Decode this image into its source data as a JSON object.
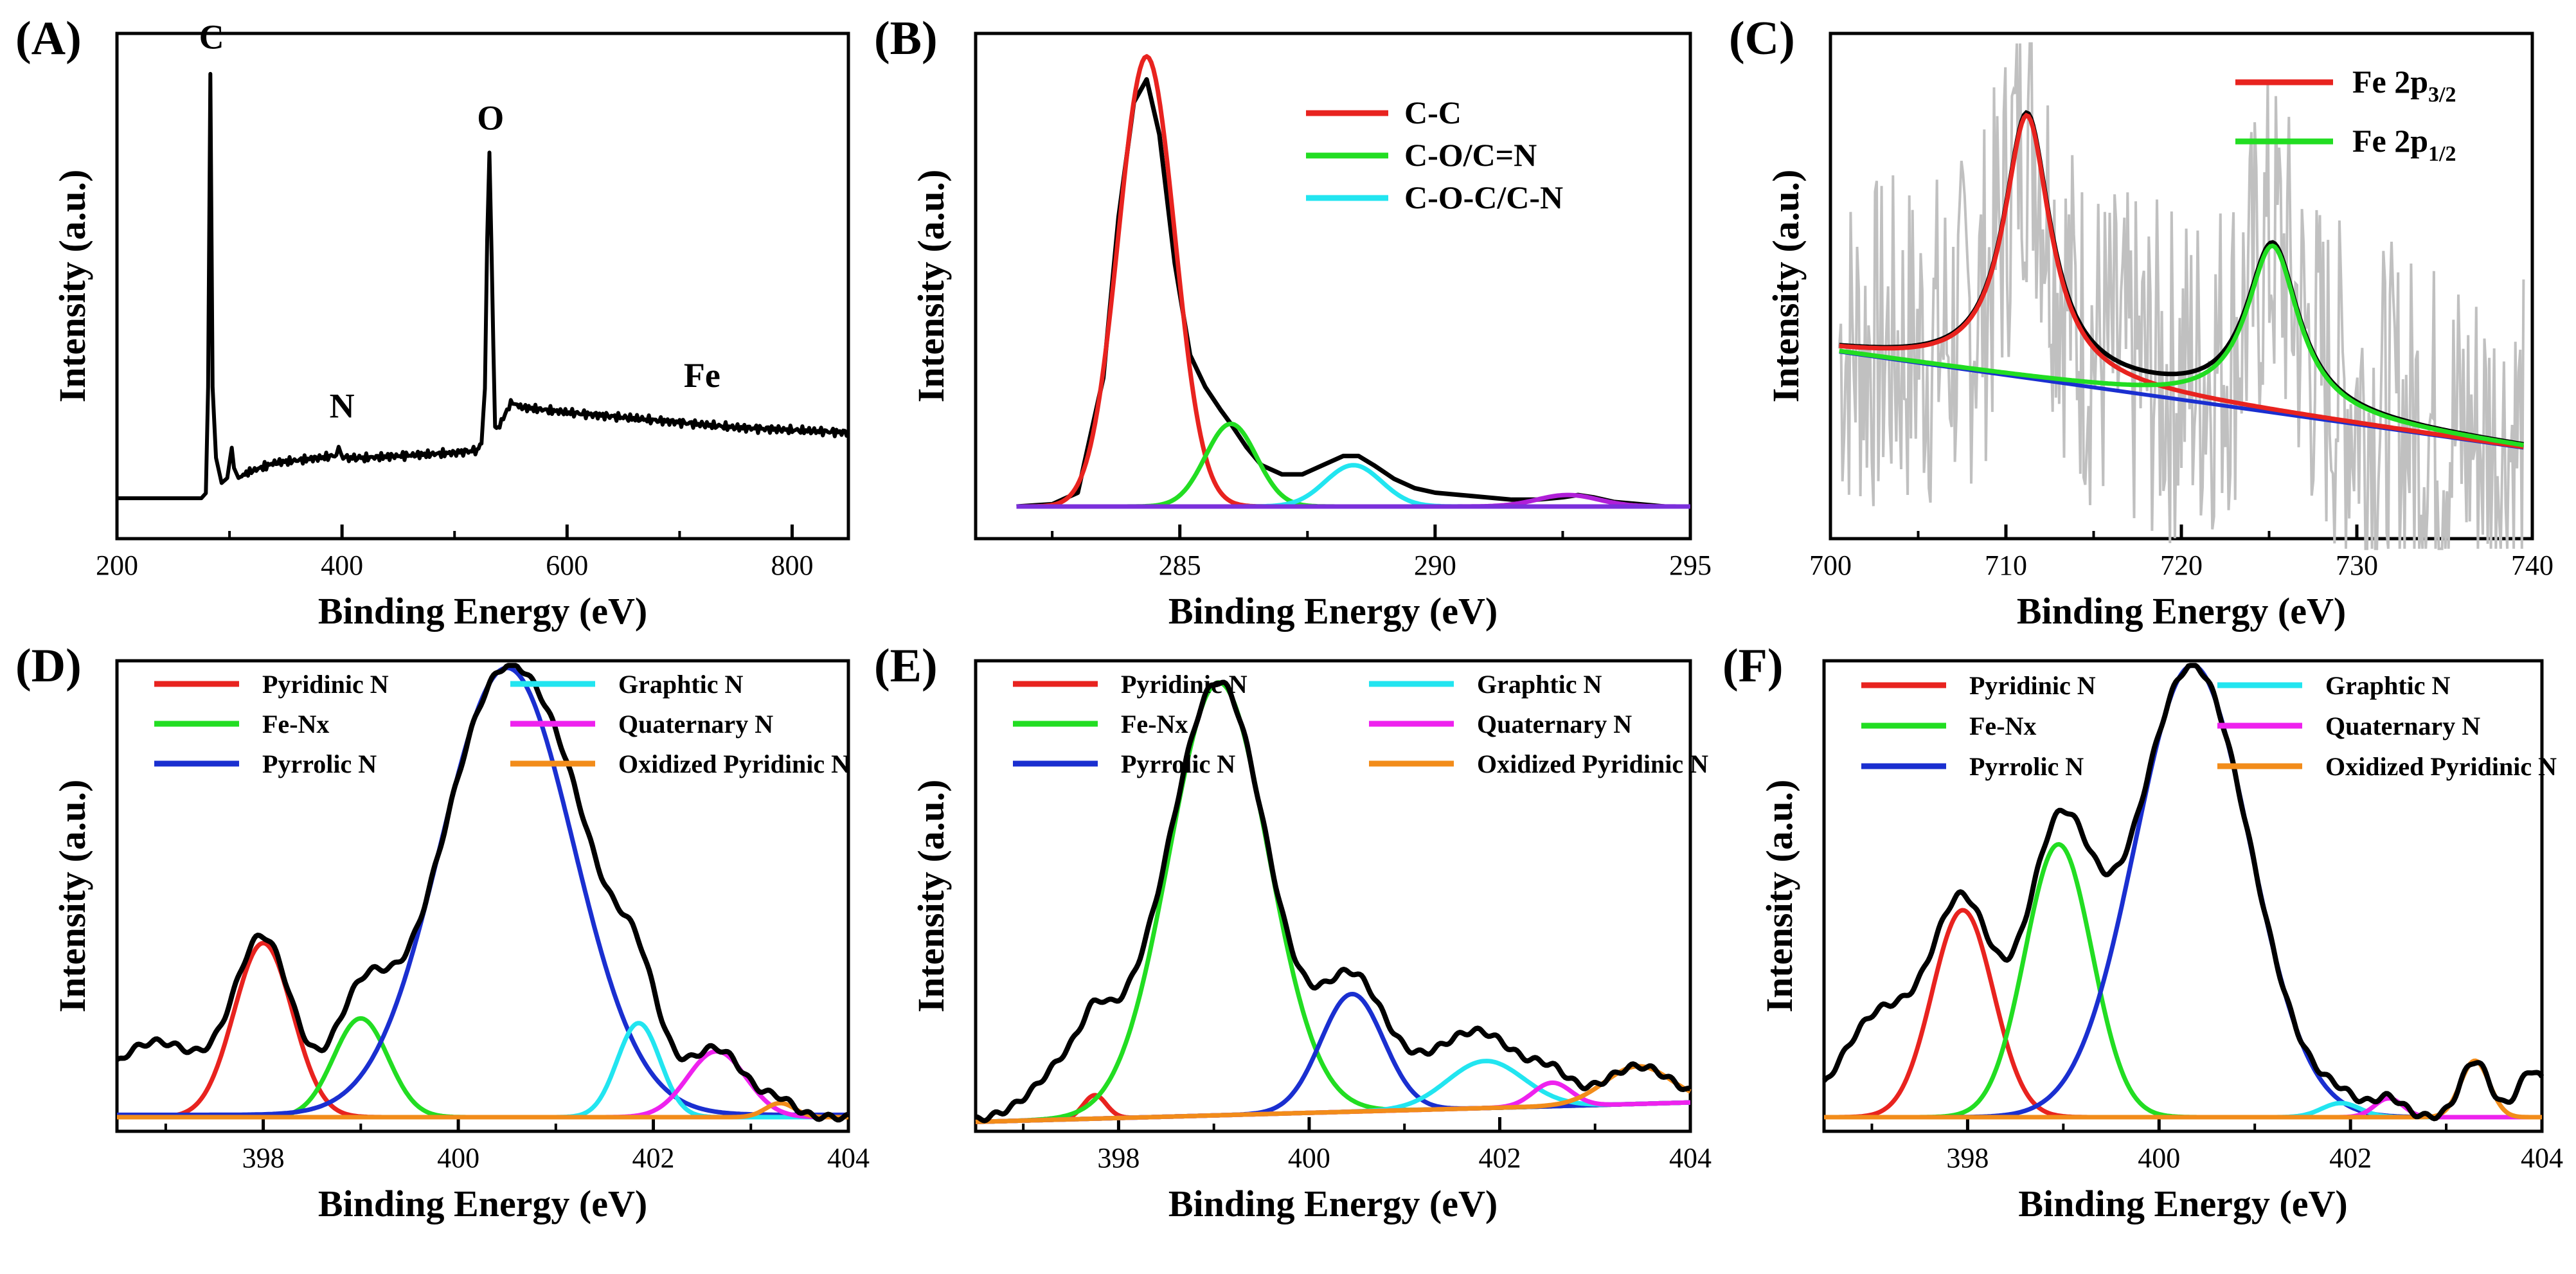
{
  "figure": {
    "background": "#ffffff"
  },
  "chart_data": [
    {
      "id": "A",
      "panel_label": "(A)",
      "type": "line",
      "xlabel": "Binding Energy (eV)",
      "ylabel": "Intensity (a.u.)",
      "xlim": [
        200,
        850
      ],
      "ylim": [
        0,
        100
      ],
      "xticks": [
        200,
        400,
        600,
        800
      ],
      "xtick_labels": [
        "200",
        "400",
        "600",
        "800"
      ],
      "series": [
        {
          "name": "survey",
          "color": "#000000",
          "x": [
            200,
            275,
            279,
            281,
            283,
            285,
            288,
            293,
            298,
            302,
            304,
            308,
            315,
            340,
            380,
            395,
            397,
            399,
            401,
            403,
            420,
            460,
            500,
            520,
            524,
            527,
            529,
            531,
            533,
            536,
            540,
            545,
            550,
            560,
            600,
            650,
            700,
            750,
            800,
            850
          ],
          "y": [
            8,
            8,
            9,
            30,
            92,
            30,
            16,
            11,
            12,
            18,
            14,
            12,
            13,
            15,
            16,
            16.5,
            18,
            17,
            16,
            16,
            16,
            16.5,
            17,
            17.5,
            19,
            30,
            60,
            76,
            55,
            22,
            22,
            25,
            27,
            26,
            25,
            24,
            23,
            22,
            21.5,
            21
          ]
        }
      ],
      "annotations": [
        {
          "text": "C",
          "x": 284,
          "y": 97
        },
        {
          "text": "N",
          "x": 400,
          "y": 24
        },
        {
          "text": "O",
          "x": 532,
          "y": 81
        },
        {
          "text": "Fe",
          "x": 720,
          "y": 30
        }
      ]
    },
    {
      "id": "B",
      "panel_label": "(B)",
      "type": "line",
      "xlabel": "Binding Energy (eV)",
      "ylabel": "Intensity (a.u.)",
      "xlim": [
        281,
        295
      ],
      "ylim": [
        0,
        110
      ],
      "xticks": [
        285,
        290,
        295
      ],
      "xtick_labels": [
        "285",
        "290",
        "295"
      ],
      "legend_position": "top-right",
      "series": [
        {
          "name": "envelope",
          "color": "#000000",
          "legend": false,
          "x": [
            281.8,
            282.5,
            283.0,
            283.5,
            283.8,
            284.1,
            284.35,
            284.6,
            284.9,
            285.2,
            285.5,
            285.8,
            286.0,
            286.3,
            286.6,
            287.0,
            287.4,
            287.8,
            288.2,
            288.5,
            288.8,
            289.2,
            289.6,
            290.0,
            290.5,
            291.0,
            291.5,
            292.0,
            292.5,
            292.8,
            293.1,
            293.5,
            294.0,
            294.5,
            295.0
          ],
          "y": [
            7,
            7.5,
            10,
            35,
            70,
            95,
            100,
            88,
            60,
            40,
            33,
            28,
            25,
            20,
            16,
            14,
            14,
            16,
            18,
            18,
            16,
            13,
            11,
            10,
            9.5,
            9,
            8.5,
            8.5,
            9,
            9.5,
            9,
            8,
            7.5,
            7,
            7
          ]
        },
        {
          "name": "C-C",
          "color": "#e8231f",
          "legend": true,
          "center": 284.35,
          "amp": 98,
          "sigma": 0.55,
          "base": 7
        },
        {
          "name": "C-O/C=N",
          "color": "#22dd22",
          "legend": true,
          "center": 286.0,
          "amp": 18,
          "sigma": 0.5,
          "base": 7
        },
        {
          "name": "C-O-C/C-N",
          "color": "#22e5f0",
          "legend": true,
          "center": 288.4,
          "amp": 9,
          "sigma": 0.55,
          "base": 7
        },
        {
          "name": "satellite",
          "color": "#b020d8",
          "legend": false,
          "center": 292.6,
          "amp": 2.5,
          "sigma": 0.6,
          "base": 7
        },
        {
          "name": "baseline",
          "color": "#7b2fdb",
          "legend": false,
          "flat": 7
        }
      ]
    },
    {
      "id": "C",
      "panel_label": "(C)",
      "type": "line",
      "xlabel": "Binding Energy (eV)",
      "ylabel": "Intensity (a.u.)",
      "xlim": [
        700,
        740
      ],
      "ylim": [
        0,
        100
      ],
      "xticks": [
        700,
        710,
        720,
        730,
        740
      ],
      "xtick_labels": [
        "700",
        "710",
        "720",
        "730",
        "740"
      ],
      "legend_position": "top-right",
      "noise_color": "#c0c0c0",
      "baseline": {
        "color": "#1a2fd0",
        "y_start": 37,
        "y_end": 18
      },
      "series": [
        {
          "name": "Fe 2p",
          "sub": "3/2",
          "color": "#e8231f",
          "legend": true,
          "center": 711.2,
          "amp": 52,
          "width": 1.6
        },
        {
          "name": "Fe 2p",
          "sub": "1/2",
          "color": "#22dd22",
          "legend": true,
          "center": 725.2,
          "amp": 33,
          "width": 1.8
        },
        {
          "name": "envelope",
          "color": "#000000",
          "legend": false
        }
      ]
    },
    {
      "id": "D",
      "panel_label": "(D)",
      "type": "line",
      "xlabel": "Binding Energy (eV)",
      "ylabel": "Intensity (a.u.)",
      "xlim": [
        396.5,
        404
      ],
      "ylim": [
        0,
        100
      ],
      "xticks": [
        398,
        400,
        402,
        404
      ],
      "xtick_labels": [
        "398",
        "400",
        "402",
        "404"
      ],
      "legend_position": "top, 2 columns",
      "base": 3,
      "series": [
        {
          "name": "Pyridinic N",
          "color": "#e8231f",
          "center": 398.0,
          "amp": 37,
          "sigma": 0.3
        },
        {
          "name": "Fe-Nx",
          "color": "#22dd22",
          "center": 399.0,
          "amp": 21,
          "sigma": 0.28
        },
        {
          "name": "Pyrrolic N",
          "color": "#1a2fd0",
          "center": 400.5,
          "amp": 95,
          "sigma": 0.68
        },
        {
          "name": "Graphtic N",
          "color": "#22e5f0",
          "center": 401.85,
          "amp": 20,
          "sigma": 0.22
        },
        {
          "name": "Quaternary N",
          "color": "#ee22ee",
          "center": 402.65,
          "amp": 14,
          "sigma": 0.3
        },
        {
          "name": "Oxidized Pyridinic N",
          "color": "#f28c1a",
          "center": 403.3,
          "amp": 3,
          "sigma": 0.15
        }
      ],
      "envelope_extra": [
        {
          "center": 396.9,
          "amp": 16,
          "sigma": 0.5
        },
        {
          "center": 401.3,
          "amp": 14,
          "sigma": 0.35
        }
      ]
    },
    {
      "id": "E",
      "panel_label": "(E)",
      "type": "line",
      "xlabel": "Binding Energy (eV)",
      "ylabel": "Intensity (a.u.)",
      "xlim": [
        396.5,
        404
      ],
      "ylim": [
        0,
        100
      ],
      "xticks": [
        398,
        400,
        402,
        404
      ],
      "xtick_labels": [
        "398",
        "400",
        "402",
        "404"
      ],
      "legend_position": "top, 2 columns",
      "base": 2,
      "series": [
        {
          "name": "Pyridinic N",
          "color": "#e8231f",
          "center": 397.75,
          "amp": 5,
          "sigma": 0.12
        },
        {
          "name": "Fe-Nx",
          "color": "#22dd22",
          "center": 399.05,
          "amp": 92,
          "sigma": 0.52
        },
        {
          "name": "Pyrrolic N",
          "color": "#1a2fd0",
          "center": 400.45,
          "amp": 25,
          "sigma": 0.33
        },
        {
          "name": "Graphtic N",
          "color": "#22e5f0",
          "center": 401.85,
          "amp": 10,
          "sigma": 0.4
        },
        {
          "name": "Quaternary N",
          "color": "#ee22ee",
          "center": 402.55,
          "amp": 5,
          "sigma": 0.2
        },
        {
          "name": "Oxidized Pyridinic N",
          "color": "#f28c1a",
          "center": 403.45,
          "amp": 8,
          "sigma": 0.35
        }
      ],
      "envelope_extra": [
        {
          "center": 397.7,
          "amp": 16,
          "sigma": 0.45
        },
        {
          "center": 401.4,
          "amp": 8,
          "sigma": 0.6
        }
      ]
    },
    {
      "id": "F",
      "panel_label": "(F)",
      "type": "line",
      "xlabel": "Binding Energy (eV)",
      "ylabel": "Intensity (a.u.)",
      "xlim": [
        396.5,
        404
      ],
      "ylim": [
        0,
        100
      ],
      "xticks": [
        398,
        400,
        402,
        404
      ],
      "xtick_labels": [
        "398",
        "400",
        "402",
        "404"
      ],
      "legend_position": "top, 2 columns",
      "base": 3,
      "series": [
        {
          "name": "Pyridinic N",
          "color": "#e8231f",
          "center": 397.95,
          "amp": 44,
          "sigma": 0.32
        },
        {
          "name": "Fe-Nx",
          "color": "#22dd22",
          "center": 398.95,
          "amp": 58,
          "sigma": 0.35
        },
        {
          "name": "Pyrrolic N",
          "color": "#1a2fd0",
          "center": 400.35,
          "amp": 96,
          "sigma": 0.6
        },
        {
          "name": "Graphtic N",
          "color": "#22e5f0",
          "center": 401.9,
          "amp": 3,
          "sigma": 0.2
        },
        {
          "name": "Quaternary N",
          "color": "#ee22ee",
          "center": 402.4,
          "amp": 4,
          "sigma": 0.15
        },
        {
          "name": "Oxidized Pyridinic N",
          "color": "#f28c1a",
          "center": 403.3,
          "amp": 12,
          "sigma": 0.15
        }
      ],
      "envelope_extra": [
        {
          "center": 397.1,
          "amp": 22,
          "sigma": 0.4
        },
        {
          "center": 403.9,
          "amp": 10,
          "sigma": 0.15
        }
      ]
    }
  ]
}
